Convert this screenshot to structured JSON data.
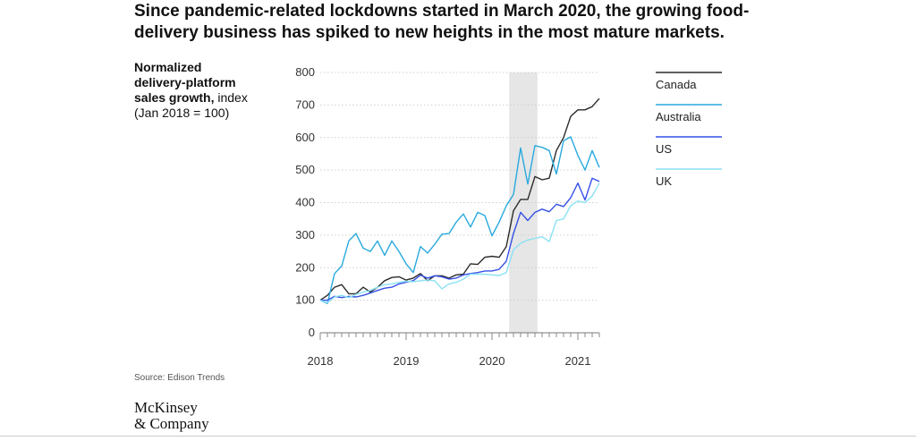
{
  "header": {
    "title_line1": "Since pandemic-related lockdowns started in March 2020, the growing food-",
    "title_line2": "delivery business has spiked to new heights in the most mature markets."
  },
  "footer": {
    "source": "Source: Edison Trends",
    "logo_line1": "McKinsey",
    "logo_line2": "& Company"
  },
  "chart_data": {
    "type": "line",
    "title": "Since pandemic-related lockdowns started in March 2020, the growing food-delivery business has spiked to new heights in the most mature markets.",
    "ylabel_bold_line1": "Normalized",
    "ylabel_bold_line2": "delivery-platform",
    "ylabel_bold_line3": "sales growth,",
    "ylabel_rest_line3": " index",
    "ylabel_line4": "(Jan 2018 = 100)",
    "xlabel": "",
    "ylim": [
      0,
      800
    ],
    "yticks": [
      0,
      100,
      200,
      300,
      400,
      500,
      600,
      700,
      800
    ],
    "ytick_labels": [
      "0",
      "100",
      "200",
      "300",
      "400",
      "500",
      "600",
      "700",
      "800"
    ],
    "xlim": [
      2018.0,
      2021.25
    ],
    "xticks": [
      2018,
      2019,
      2020,
      2021
    ],
    "xtick_labels": [
      "2018",
      "2019",
      "2020",
      "2021"
    ],
    "x_start": 2018.0,
    "x_step_months": 1,
    "highlight_period": [
      2020.2,
      2020.53
    ],
    "legend_position": "right",
    "series": [
      {
        "name": "Canada",
        "color": "#2b2b2b",
        "values": [
          100,
          115,
          140,
          148,
          120,
          120,
          140,
          125,
          140,
          160,
          170,
          172,
          162,
          168,
          182,
          160,
          175,
          175,
          168,
          178,
          180,
          212,
          210,
          232,
          235,
          232,
          265,
          375,
          410,
          410,
          480,
          470,
          475,
          560,
          600,
          665,
          685,
          685,
          695,
          720
        ]
      },
      {
        "name": "Australia",
        "color": "#28a9de",
        "values": [
          100,
          90,
          182,
          205,
          283,
          305,
          260,
          250,
          282,
          238,
          282,
          250,
          212,
          185,
          265,
          245,
          272,
          303,
          305,
          340,
          365,
          325,
          370,
          360,
          298,
          340,
          390,
          425,
          568,
          457,
          575,
          570,
          560,
          488,
          590,
          602,
          545,
          500,
          560,
          508
        ]
      },
      {
        "name": "US",
        "color": "#3550e6",
        "values": [
          100,
          100,
          112,
          108,
          112,
          110,
          115,
          122,
          130,
          137,
          140,
          150,
          155,
          160,
          177,
          168,
          175,
          172,
          165,
          168,
          178,
          182,
          185,
          190,
          190,
          195,
          220,
          305,
          370,
          345,
          370,
          380,
          372,
          395,
          388,
          415,
          460,
          408,
          475,
          465
        ]
      },
      {
        "name": "UK",
        "color": "#8ae1f4",
        "values": [
          100,
          92,
          110,
          115,
          108,
          118,
          125,
          130,
          140,
          148,
          150,
          155,
          158,
          157,
          160,
          162,
          160,
          135,
          150,
          155,
          165,
          180,
          180,
          180,
          178,
          176,
          185,
          255,
          275,
          285,
          290,
          295,
          280,
          345,
          350,
          390,
          405,
          400,
          420,
          460
        ]
      }
    ]
  }
}
